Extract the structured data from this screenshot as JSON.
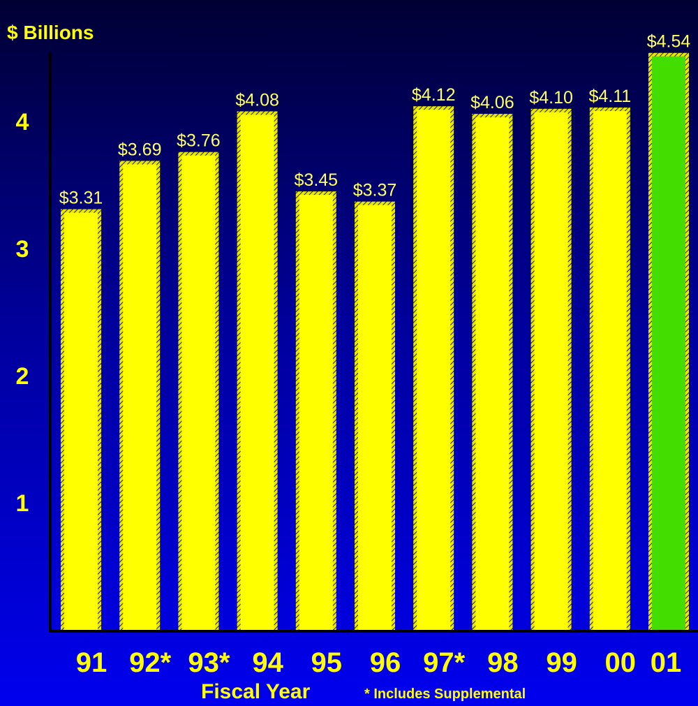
{
  "chart_data": {
    "type": "bar",
    "title": "",
    "ylabel": "$ Billions",
    "xlabel": "Fiscal Year",
    "footnote": "* Includes Supplemental",
    "categories": [
      "91",
      "92*",
      "93*",
      "94",
      "95",
      "96",
      "97*",
      "98",
      "99",
      "00",
      "01"
    ],
    "values": [
      3.31,
      3.69,
      3.76,
      4.08,
      3.45,
      3.37,
      4.12,
      4.06,
      4.1,
      4.11,
      4.54
    ],
    "data_labels": [
      "$3.31",
      "$3.69",
      "$3.76",
      "$4.08",
      "$3.45",
      "$3.37",
      "$4.12",
      "$4.06",
      "$4.10",
      "$4.11",
      "$4.54"
    ],
    "yticks": [
      "1",
      "2",
      "3",
      "4"
    ],
    "ylim": [
      0,
      4.7
    ],
    "grid": false,
    "colors": {
      "bar": "#ffff00",
      "highlight_bar": "#44dd00",
      "text": "#ffff00",
      "data_label": "#ffff66"
    },
    "highlight_index": 10
  }
}
